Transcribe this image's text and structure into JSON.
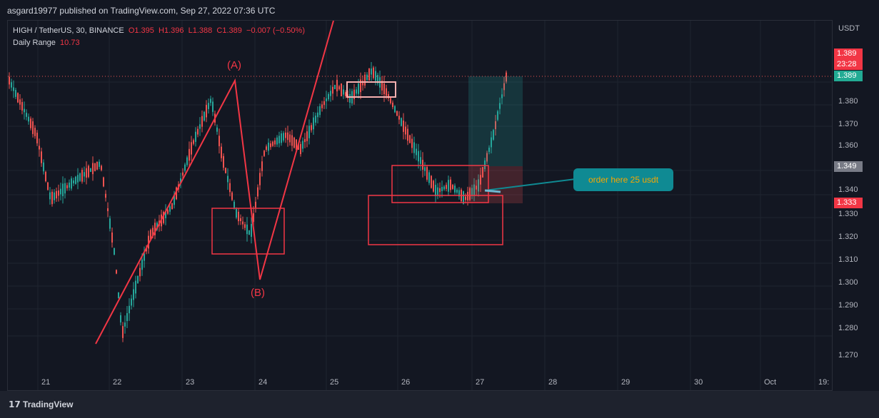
{
  "header": {
    "publisher_text": "asgard19977 published on TradingView.com, Sep 27, 2022 07:36 UTC"
  },
  "legend": {
    "symbol": "HIGH / TetherUS, 30, BINANCE",
    "open": "O1.395",
    "high": "H1.396",
    "low": "L1.388",
    "close": "C1.389",
    "change": "−0.007 (−0.50%)",
    "indicator_name": "Daily Range",
    "indicator_value": "10.73"
  },
  "price_axis": {
    "unit": "USDT",
    "ticks": [
      "1.380",
      "1.370",
      "1.360",
      "1.340",
      "1.330",
      "1.320",
      "1.310",
      "1.300",
      "1.290",
      "1.280",
      "1.270"
    ],
    "tags": {
      "last_price": "1.389",
      "countdown": "23:28",
      "green_tag": "1.389",
      "grey_tag": "1.349",
      "red_tag": "1.333"
    }
  },
  "time_axis": {
    "labels": [
      "21",
      "22",
      "23",
      "24",
      "25",
      "26",
      "27",
      "28",
      "29",
      "30",
      "Oct",
      "19:"
    ]
  },
  "annotations": {
    "wave_a": "(A)",
    "wave_b": "(B)",
    "callout": "order here 25 usdt"
  },
  "footer": {
    "logo_text": "TradingView"
  },
  "colors": {
    "up": "#26a69a",
    "down": "#ef5350",
    "drawing": "#f23645",
    "callout": "#0f8a93"
  }
}
